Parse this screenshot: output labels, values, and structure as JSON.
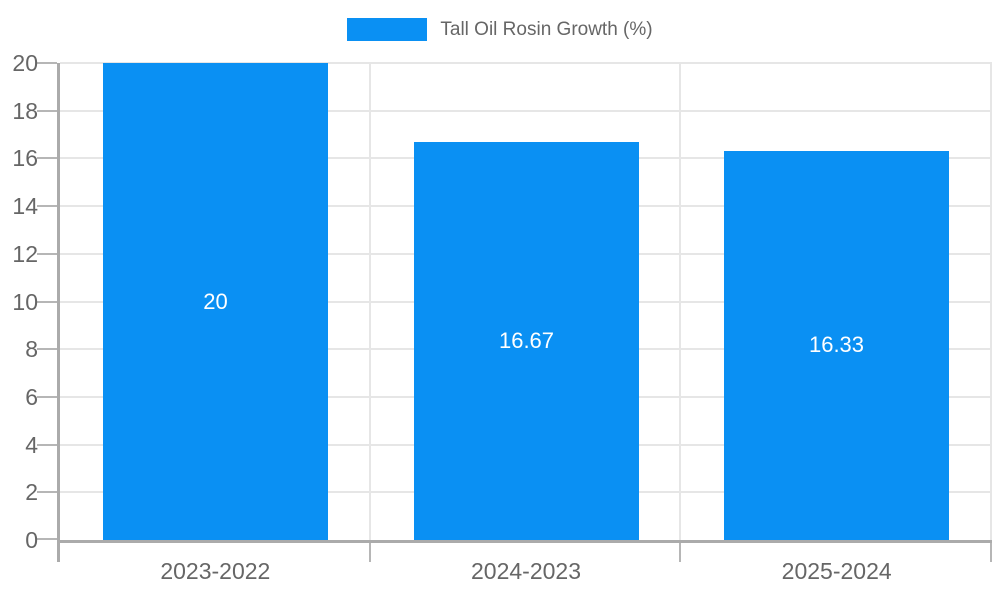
{
  "chart_data": {
    "type": "bar",
    "title": "",
    "legend": {
      "label": "Tall Oil Rosin Growth (%)",
      "position": "top"
    },
    "categories": [
      "2023-2022",
      "2024-2023",
      "2025-2024"
    ],
    "values": [
      20,
      16.67,
      16.33
    ],
    "value_labels": [
      "20",
      "16.67",
      "16.33"
    ],
    "xlabel": "",
    "ylabel": "",
    "ylim": [
      0,
      20
    ],
    "y_ticks": [
      0,
      2,
      4,
      6,
      8,
      10,
      12,
      14,
      16,
      18,
      20
    ],
    "grid": true,
    "legend_position": "top-center",
    "colors": {
      "bar": "#0A90F3",
      "grid_line": "#e6e6e6",
      "axis_line": "#ababab",
      "tick_mark": "#b6b6b6",
      "axis_text": "#666666",
      "bar_label_text": "#ffffff"
    }
  }
}
